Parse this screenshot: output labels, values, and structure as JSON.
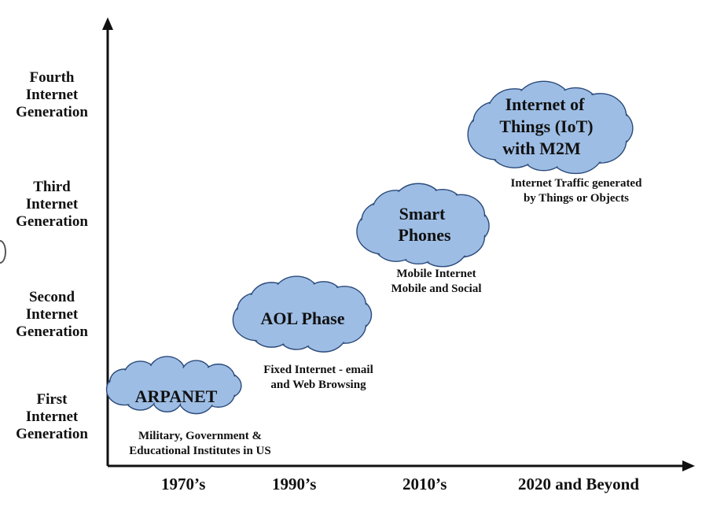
{
  "y_axis_labels": [
    {
      "lines": [
        "Fourth",
        "Internet",
        "Generation"
      ]
    },
    {
      "lines": [
        "Third",
        "Internet",
        "Generation"
      ]
    },
    {
      "lines": [
        "Second",
        "Internet",
        "Generation"
      ]
    },
    {
      "lines": [
        "First",
        "Internet",
        "Generation"
      ]
    }
  ],
  "x_axis_labels": [
    "1970’s",
    "1990’s",
    "2010’s",
    "2020 and Beyond"
  ],
  "stages": [
    {
      "cloud_lines": [
        "ARPANET"
      ],
      "caption_lines": [
        "Military, Government &",
        "Educational Institutes in US"
      ]
    },
    {
      "cloud_lines": [
        "AOL Phase"
      ],
      "caption_lines": [
        "Fixed Internet - email",
        "and Web Browsing"
      ]
    },
    {
      "cloud_lines": [
        "Smart",
        "Phones"
      ],
      "caption_lines": [
        "Mobile Internet",
        "Mobile and Social"
      ]
    },
    {
      "cloud_lines": [
        "Internet of",
        "Things (IoT)",
        "with M2M"
      ],
      "caption_lines": [
        "Internet Traffic generated",
        "by Things or Objects"
      ]
    }
  ],
  "colors": {
    "cloud_fill": "#9dbde4",
    "cloud_stroke": "#2b4a7a",
    "axis": "#111111"
  }
}
